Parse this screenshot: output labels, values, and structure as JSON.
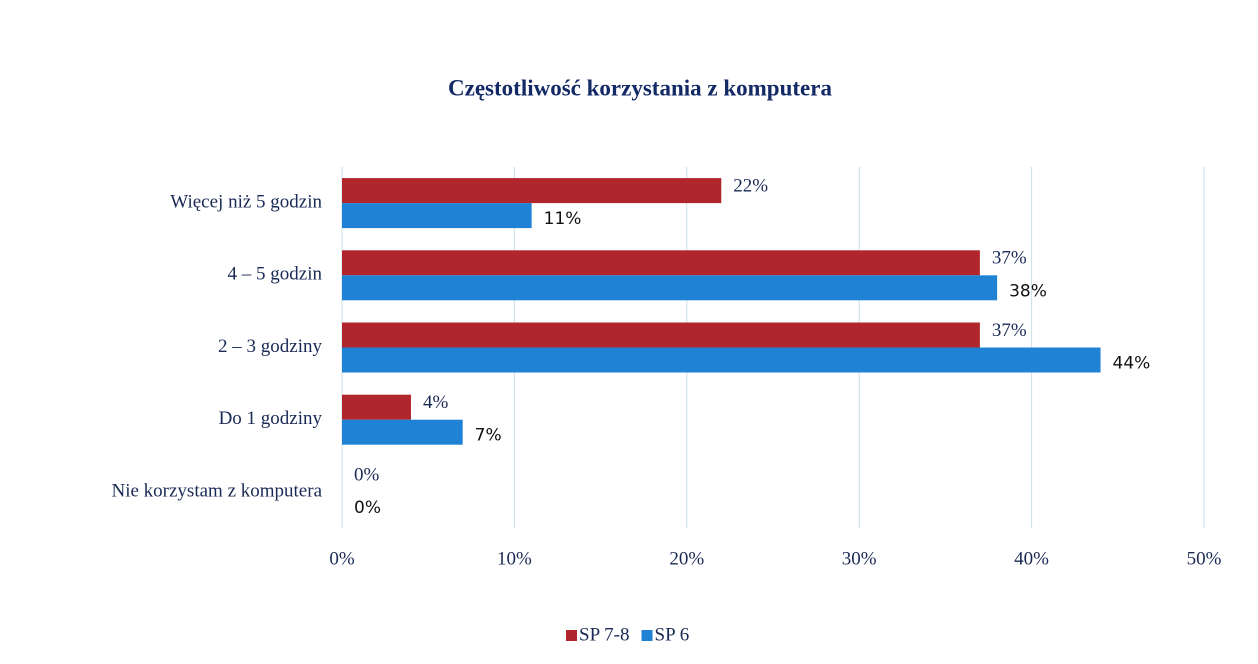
{
  "chart_data": {
    "type": "bar",
    "orientation": "horizontal",
    "title": "Częstotliwość korzystania z komputera",
    "categories": [
      "Więcej niż 5 godzin",
      "4 – 5 godzin",
      "2 – 3 godziny",
      "Do 1 godziny",
      "Nie korzystam z komputera"
    ],
    "series": [
      {
        "name": "SP 7-8",
        "color": "#b0262c",
        "values": [
          22,
          37,
          37,
          4,
          0
        ],
        "value_labels": [
          "22%",
          "37%",
          "37%",
          "4%",
          "0%"
        ]
      },
      {
        "name": "SP 6",
        "color": "#1f82d4",
        "values": [
          11,
          38,
          44,
          7,
          0
        ],
        "value_labels": [
          "11%",
          "38%",
          "44%",
          "7%",
          "0%"
        ]
      }
    ],
    "xlim": [
      0,
      50
    ],
    "xticks": [
      {
        "value": 0,
        "label": "0%"
      },
      {
        "value": 10,
        "label": "10%"
      },
      {
        "value": 20,
        "label": "20%"
      },
      {
        "value": 30,
        "label": "30%"
      },
      {
        "value": 40,
        "label": "40%"
      },
      {
        "value": 50,
        "label": "50%"
      }
    ],
    "grid": true,
    "legend": "bottom"
  }
}
